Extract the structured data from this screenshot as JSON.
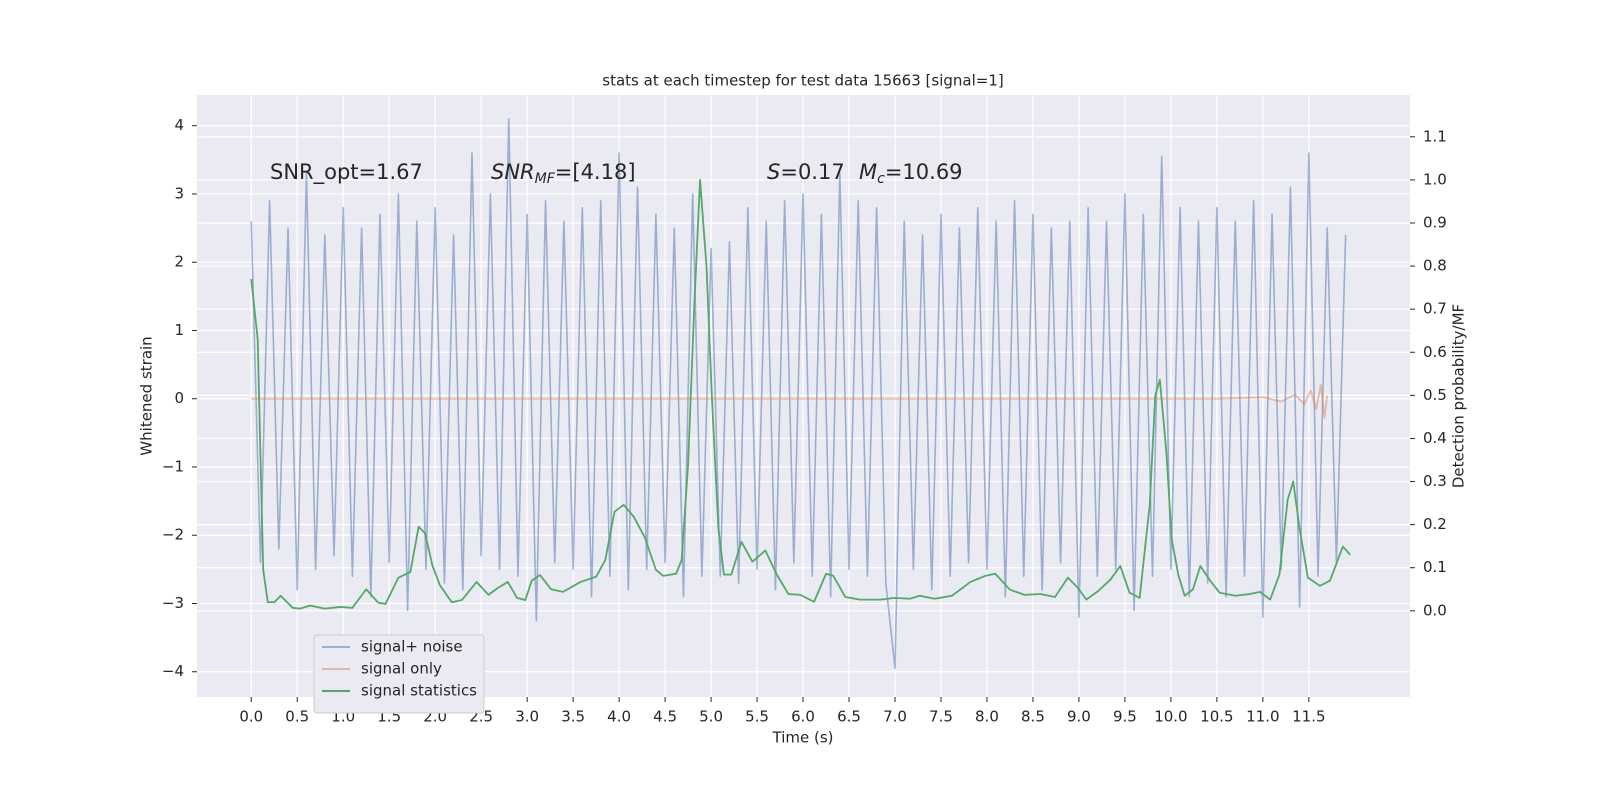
{
  "chart_data": {
    "type": "line",
    "title": "stats at each timestep for test data 15663 [signal=1]",
    "xlabel": "Time (s)",
    "ylabel": "Whitened strain",
    "y2label": "Detection probability/MF",
    "annotations": [
      {
        "main": "SNR_opt=1.67"
      },
      {
        "main": "SNR",
        "sub": "MF",
        "rest": "=[4.18]"
      },
      {
        "main": "S",
        "rest": "=0.17"
      },
      {
        "main": "M",
        "sub": "c",
        "rest": "=10.69"
      }
    ],
    "xlim": [
      -0.59,
      12.6
    ],
    "ylim": [
      -4.37,
      4.45
    ],
    "y2lim": [
      -0.2,
      1.197
    ],
    "xticks": [
      {
        "value": 0,
        "label": "0.0"
      },
      0.5,
      {
        "value": 1,
        "label": "1.0"
      },
      1.5,
      {
        "value": 2,
        "label": "2.0"
      },
      2.5,
      {
        "value": 3,
        "label": "3.0"
      },
      3.5,
      {
        "value": 4,
        "label": "4.0"
      },
      4.5,
      {
        "value": 5,
        "label": "5.0"
      },
      5.5,
      {
        "value": 6,
        "label": "6.0"
      },
      6.5,
      {
        "value": 7,
        "label": "7.0"
      },
      7.5,
      {
        "value": 8,
        "label": "8.0"
      },
      8.5,
      {
        "value": 9,
        "label": "9.0"
      },
      9.5,
      {
        "value": 10,
        "label": "10.0"
      },
      10.5,
      {
        "value": 11,
        "label": "11.0"
      },
      11.5
    ],
    "yticks": [
      {
        "value": -4,
        "label": "−4"
      },
      {
        "value": -3,
        "label": "−3"
      },
      {
        "value": -2,
        "label": "−2"
      },
      {
        "value": -1,
        "label": "−1"
      },
      0,
      1,
      2,
      3,
      4
    ],
    "y2ticks": [
      {
        "value": 0,
        "label": "0.0"
      },
      0.1,
      0.2,
      0.3,
      0.4,
      0.5,
      0.6,
      0.7,
      0.8,
      0.9,
      {
        "value": 1,
        "label": "1.0"
      },
      1.1
    ],
    "grid": true,
    "legend": "lower left",
    "series": [
      {
        "name": "signal+ noise",
        "color": "#4c72b0",
        "opacity": 0.5,
        "x": [
          0,
          0.1,
          0.2,
          0.3,
          0.4,
          0.5,
          0.6,
          0.7,
          0.8,
          0.9,
          1,
          1.1,
          1.2,
          1.3,
          1.4,
          1.5,
          1.6,
          1.7,
          1.8,
          1.9,
          2,
          2.1,
          2.2,
          2.3,
          2.4,
          2.5,
          2.6,
          2.7,
          2.8,
          2.9,
          3,
          3.1,
          3.2,
          3.3,
          3.4,
          3.5,
          3.6,
          3.7,
          3.8,
          3.9,
          4,
          4.1,
          4.2,
          4.3,
          4.4,
          4.5,
          4.6,
          4.7,
          4.8,
          4.9,
          5,
          5.1,
          5.2,
          5.3,
          5.4,
          5.5,
          5.6,
          5.7,
          5.8,
          5.9,
          6,
          6.1,
          6.2,
          6.3,
          6.4,
          6.5,
          6.6,
          6.7,
          6.8,
          6.9,
          7,
          7.1,
          7.2,
          7.3,
          7.4,
          7.5,
          7.6,
          7.7,
          7.8,
          7.9,
          8,
          8.1,
          8.2,
          8.3,
          8.4,
          8.5,
          8.6,
          8.7,
          8.8,
          8.9,
          9,
          9.1,
          9.2,
          9.3,
          9.4,
          9.5,
          9.6,
          9.7,
          9.8,
          9.9,
          10,
          10.1,
          10.2,
          10.3,
          10.4,
          10.5,
          10.6,
          10.7,
          10.8,
          10.9,
          11,
          11.1,
          11.2,
          11.3,
          11.4,
          11.5,
          11.6,
          11.7,
          11.8,
          11.9
        ],
        "values": [
          2.6,
          -2.4,
          2.9,
          -2.2,
          2.5,
          -2.8,
          3.3,
          -2.5,
          2.4,
          -2.3,
          2.8,
          -2.6,
          2.5,
          -2.9,
          2.7,
          -2.4,
          3.0,
          -3.1,
          2.6,
          -2.5,
          2.8,
          -2.7,
          2.4,
          -2.8,
          3.6,
          -2.3,
          3.0,
          -2.5,
          4.1,
          -2.6,
          2.7,
          -3.25,
          2.9,
          -2.4,
          2.6,
          -2.5,
          2.8,
          -2.9,
          2.9,
          -2.6,
          3.6,
          -2.8,
          3.1,
          -2.5,
          2.7,
          -2.4,
          2.5,
          -2.9,
          3.0,
          -2.6,
          2.2,
          -2.6,
          2.3,
          -2.7,
          2.8,
          -2.5,
          2.6,
          -2.8,
          2.9,
          -2.4,
          3.0,
          -2.6,
          2.7,
          -2.9,
          3.3,
          -2.5,
          2.9,
          -2.6,
          2.8,
          -2.7,
          -3.95,
          2.6,
          -2.5,
          2.4,
          -2.8,
          2.7,
          -2.6,
          2.5,
          -2.4,
          2.8,
          -2.5,
          2.6,
          -2.9,
          2.9,
          -2.6,
          2.7,
          -2.8,
          2.5,
          -2.4,
          2.6,
          -3.2,
          2.8,
          -2.6,
          2.6,
          -2.5,
          3.0,
          -3.1,
          2.7,
          -2.6,
          3.55,
          -2.5,
          2.8,
          -2.9,
          2.6,
          -2.7,
          2.8,
          -2.9,
          2.6,
          -2.6,
          2.9,
          -3.2,
          2.7,
          -2.5,
          3.1,
          -3.05,
          3.6,
          -2.6,
          2.5,
          -2.4,
          2.4
        ]
      },
      {
        "name": "signal only",
        "color": "#dd8452",
        "opacity": 0.5,
        "x": [
          0,
          1,
          2,
          3,
          4,
          5,
          6,
          7,
          8,
          9,
          10,
          10.5,
          11,
          11.2,
          11.35,
          11.45,
          11.52,
          11.58,
          11.63,
          11.67,
          11.7
        ],
        "values": [
          0,
          0,
          0,
          0,
          0,
          0,
          0,
          0,
          0,
          0,
          0,
          0,
          0.02,
          -0.04,
          0.06,
          -0.08,
          0.12,
          -0.15,
          0.2,
          -0.28,
          0.05
        ]
      },
      {
        "name": "signal statistics",
        "color": "#55a868",
        "opacity": 1,
        "axis": "y2",
        "x": [
          0,
          0.07,
          0.13,
          0.18,
          0.25,
          0.32,
          0.45,
          0.53,
          0.64,
          0.8,
          0.97,
          1.1,
          1.25,
          1.38,
          1.46,
          1.6,
          1.73,
          1.82,
          1.89,
          1.97,
          2.05,
          2.18,
          2.29,
          2.45,
          2.58,
          2.68,
          2.79,
          2.89,
          2.98,
          3.05,
          3.14,
          3.26,
          3.39,
          3.58,
          3.75,
          3.85,
          3.95,
          4.05,
          4.16,
          4.28,
          4.4,
          4.48,
          4.62,
          4.68,
          4.75,
          4.82,
          4.88,
          4.95,
          5.01,
          5.08,
          5.14,
          5.22,
          5.33,
          5.45,
          5.59,
          5.71,
          5.84,
          5.97,
          6.12,
          6.25,
          6.33,
          6.46,
          6.62,
          6.84,
          7.0,
          7.16,
          7.27,
          7.43,
          7.62,
          7.82,
          7.98,
          8.09,
          8.25,
          8.41,
          8.58,
          8.74,
          8.88,
          8.99,
          9.08,
          9.21,
          9.34,
          9.45,
          9.55,
          9.66,
          9.77,
          9.83,
          9.88,
          9.95,
          10.01,
          10.08,
          10.15,
          10.24,
          10.32,
          10.42,
          10.53,
          10.7,
          10.86,
          10.97,
          11.08,
          11.18,
          11.27,
          11.33,
          11.4,
          11.49,
          11.62,
          11.73,
          11.87,
          11.95
        ],
        "values": [
          0.77,
          0.63,
          0.095,
          0.02,
          0.02,
          0.035,
          0.007,
          0.005,
          0.012,
          0.005,
          0.009,
          0.007,
          0.05,
          0.019,
          0.016,
          0.077,
          0.09,
          0.195,
          0.18,
          0.105,
          0.06,
          0.02,
          0.025,
          0.067,
          0.037,
          0.053,
          0.067,
          0.03,
          0.025,
          0.07,
          0.083,
          0.05,
          0.044,
          0.067,
          0.079,
          0.118,
          0.23,
          0.246,
          0.218,
          0.17,
          0.095,
          0.081,
          0.086,
          0.118,
          0.34,
          0.72,
          1.0,
          0.8,
          0.49,
          0.19,
          0.084,
          0.084,
          0.16,
          0.114,
          0.14,
          0.086,
          0.039,
          0.037,
          0.021,
          0.086,
          0.081,
          0.032,
          0.026,
          0.026,
          0.03,
          0.028,
          0.035,
          0.028,
          0.035,
          0.067,
          0.081,
          0.086,
          0.049,
          0.037,
          0.039,
          0.032,
          0.077,
          0.053,
          0.026,
          0.046,
          0.072,
          0.104,
          0.042,
          0.03,
          0.246,
          0.5,
          0.536,
          0.37,
          0.165,
          0.084,
          0.035,
          0.05,
          0.104,
          0.072,
          0.042,
          0.035,
          0.039,
          0.044,
          0.026,
          0.084,
          0.258,
          0.3,
          0.19,
          0.077,
          0.058,
          0.07,
          0.149,
          0.13
        ]
      }
    ]
  }
}
